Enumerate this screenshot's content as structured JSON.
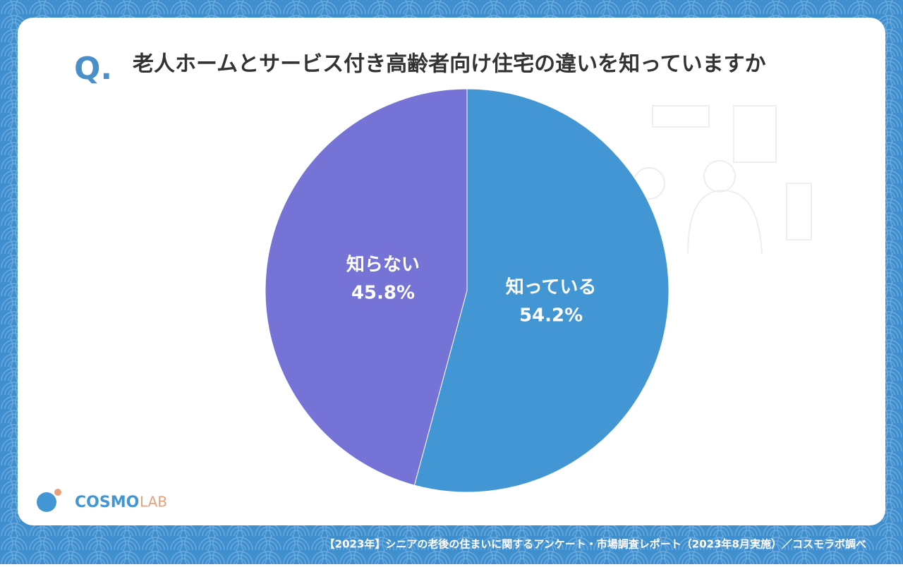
{
  "question_label": "Q.",
  "logo_main": "COSMO",
  "logo_sub": "LAB",
  "footer": "【2023年】シニアの老後の住まいに関するアンケート・市場調査レポート（2023年8月実施）／コスモラボ調べ",
  "chart_data": {
    "type": "pie",
    "title": "老人ホームとサービス付き高齢者向け住宅の違いを知っていますか",
    "categories": [
      "知っている",
      "知らない"
    ],
    "values": [
      54.2,
      45.8
    ],
    "value_labels": [
      "54.2%",
      "45.8%"
    ],
    "colors": [
      "#4396d4",
      "#7574d6"
    ]
  }
}
